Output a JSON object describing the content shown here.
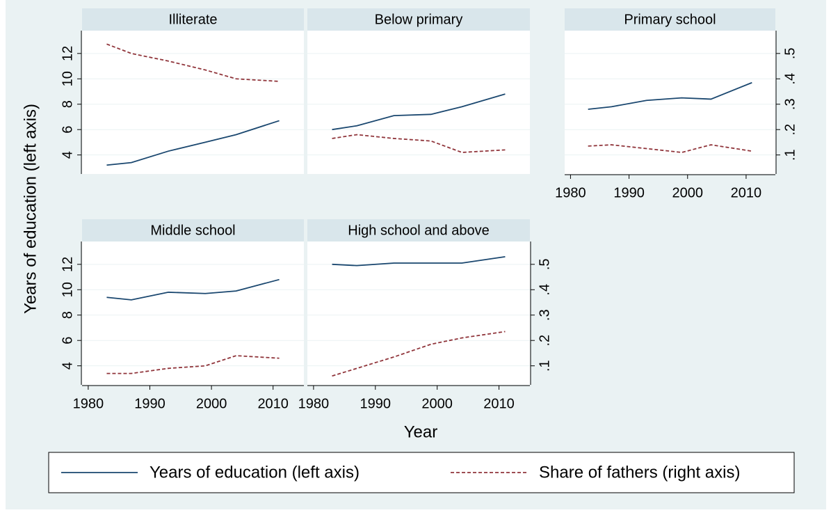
{
  "y_label": "Years of education (left axis)",
  "x_label": "Year",
  "chart_data": [
    {
      "type": "line",
      "title": "Illiterate",
      "left_axis": true,
      "x": [
        1983,
        1987,
        1993,
        1999,
        2004,
        2011
      ],
      "xlim": [
        1979,
        2015
      ],
      "ylim": [
        2.5,
        13.8
      ],
      "yticks": [
        4,
        6,
        8,
        10,
        12
      ],
      "y2lim": [
        0.025,
        0.59
      ],
      "grid": true,
      "series": [
        {
          "name": "Years of education (left axis)",
          "color": "#1a476f",
          "style": "solid",
          "values": [
            3.2,
            3.4,
            4.3,
            5.0,
            5.6,
            6.7
          ]
        },
        {
          "name": "Share of fathers (right axis)",
          "color": "#90353b",
          "style": "dashed",
          "axis": "y2",
          "values": [
            0.537,
            0.5,
            0.47,
            0.435,
            0.4,
            0.39
          ]
        }
      ]
    },
    {
      "type": "line",
      "title": "Below primary",
      "x": [
        1983,
        1987,
        1993,
        1999,
        2004,
        2011
      ],
      "xlim": [
        1979,
        2015
      ],
      "ylim": [
        2.5,
        13.8
      ],
      "yticks": [
        4,
        6,
        8,
        10,
        12
      ],
      "y2lim": [
        0.025,
        0.59
      ],
      "grid": true,
      "series": [
        {
          "name": "Years of education (left axis)",
          "color": "#1a476f",
          "style": "solid",
          "values": [
            6.0,
            6.3,
            7.1,
            7.2,
            7.8,
            8.8
          ]
        },
        {
          "name": "Share of fathers (right axis)",
          "color": "#90353b",
          "style": "dashed",
          "axis": "y2",
          "values": [
            0.165,
            0.18,
            0.165,
            0.155,
            0.11,
            0.12
          ]
        }
      ]
    },
    {
      "type": "line",
      "title": "Primary school",
      "x": [
        1983,
        1987,
        1993,
        1999,
        2004,
        2011
      ],
      "xlim": [
        1979,
        2015
      ],
      "xticks": [
        1980,
        1990,
        2000,
        2010
      ],
      "ylim": [
        2.5,
        13.8
      ],
      "yticks": [
        4,
        6,
        8,
        10,
        12
      ],
      "y2lim": [
        0.025,
        0.59
      ],
      "grid": true,
      "y2ticks": [
        {
          "value": 0.1,
          "label": ".1"
        },
        {
          "value": 0.2,
          "label": ".2"
        },
        {
          "value": 0.3,
          "label": ".3"
        },
        {
          "value": 0.4,
          "label": ".4"
        },
        {
          "value": 0.5,
          "label": ".5"
        }
      ],
      "series": [
        {
          "name": "Years of education (left axis)",
          "color": "#1a476f",
          "style": "solid",
          "values": [
            7.6,
            7.8,
            8.3,
            8.5,
            8.4,
            9.7
          ]
        },
        {
          "name": "Share of fathers (right axis)",
          "color": "#90353b",
          "style": "dashed",
          "axis": "y2",
          "values": [
            0.135,
            0.14,
            0.125,
            0.11,
            0.14,
            0.115
          ]
        }
      ]
    },
    {
      "type": "line",
      "title": "Middle school",
      "left_axis": true,
      "x": [
        1983,
        1987,
        1993,
        1999,
        2004,
        2011
      ],
      "xlim": [
        1979,
        2015
      ],
      "xticks": [
        1980,
        1990,
        2000,
        2010
      ],
      "ylim": [
        2.5,
        13.8
      ],
      "yticks": [
        4,
        6,
        8,
        10,
        12
      ],
      "y2lim": [
        0.025,
        0.59
      ],
      "grid": true,
      "series": [
        {
          "name": "Years of education (left axis)",
          "color": "#1a476f",
          "style": "solid",
          "values": [
            9.4,
            9.2,
            9.8,
            9.7,
            9.9,
            10.8
          ]
        },
        {
          "name": "Share of fathers (right axis)",
          "color": "#90353b",
          "style": "dashed",
          "axis": "y2",
          "values": [
            0.07,
            0.07,
            0.09,
            0.1,
            0.14,
            0.13
          ]
        }
      ]
    },
    {
      "type": "line",
      "title": "High school and above",
      "x": [
        1983,
        1987,
        1993,
        1999,
        2004,
        2011
      ],
      "xlim": [
        1979,
        2015
      ],
      "xticks": [
        1980,
        1990,
        2000,
        2010
      ],
      "ylim": [
        2.5,
        13.8
      ],
      "yticks": [
        4,
        6,
        8,
        10,
        12
      ],
      "y2lim": [
        0.025,
        0.59
      ],
      "grid": true,
      "y2ticks": [
        {
          "value": 0.1,
          "label": ".1"
        },
        {
          "value": 0.2,
          "label": ".2"
        },
        {
          "value": 0.3,
          "label": ".3"
        },
        {
          "value": 0.4,
          "label": ".4"
        },
        {
          "value": 0.5,
          "label": ".5"
        }
      ],
      "series": [
        {
          "name": "Years of education (left axis)",
          "color": "#1a476f",
          "style": "solid",
          "values": [
            12.0,
            11.9,
            12.1,
            12.1,
            12.1,
            12.6
          ]
        },
        {
          "name": "Share of fathers (right axis)",
          "color": "#90353b",
          "style": "dashed",
          "axis": "y2",
          "values": [
            0.06,
            0.09,
            0.135,
            0.185,
            0.21,
            0.235
          ]
        }
      ]
    }
  ]
}
